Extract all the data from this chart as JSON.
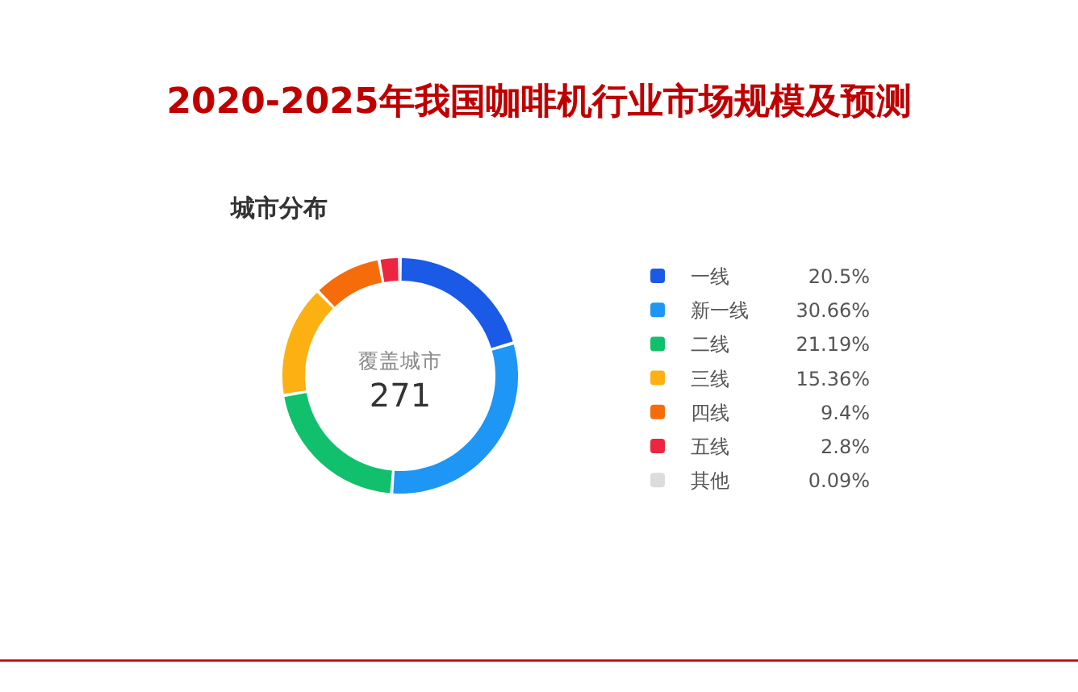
{
  "chart_data": {
    "type": "donut",
    "title": "2020-2025年我国咖啡机行业市场规模及预测",
    "subtitle": "城市分布",
    "categories": [
      "一线",
      "新一线",
      "二线",
      "三线",
      "四线",
      "五线",
      "其他"
    ],
    "values": [
      20.5,
      30.66,
      21.19,
      15.36,
      9.4,
      2.8,
      0.09
    ],
    "colors": [
      "#1a5ae6",
      "#1e96f5",
      "#10c06c",
      "#fcb012",
      "#f76c0a",
      "#ec2540",
      "#dcdcdc"
    ],
    "value_labels": [
      "20.5%",
      "30.66%",
      "21.19%",
      "15.36%",
      "9.4%",
      "2.8%",
      "0.09%"
    ],
    "legend": "right",
    "annotations": [
      "覆盖城市",
      "271"
    ]
  }
}
